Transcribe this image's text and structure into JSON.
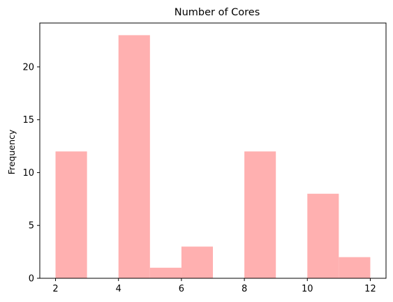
{
  "chart_data": {
    "type": "bar",
    "title": "Number of Cores",
    "xlabel": "",
    "ylabel": "Frequency",
    "bins": [
      {
        "x0": 2,
        "x1": 3,
        "value": 12
      },
      {
        "x0": 3,
        "x1": 4,
        "value": 0
      },
      {
        "x0": 4,
        "x1": 5,
        "value": 23
      },
      {
        "x0": 5,
        "x1": 6,
        "value": 1
      },
      {
        "x0": 6,
        "x1": 7,
        "value": 3
      },
      {
        "x0": 7,
        "x1": 8,
        "value": 0
      },
      {
        "x0": 8,
        "x1": 9,
        "value": 12
      },
      {
        "x0": 9,
        "x1": 10,
        "value": 0
      },
      {
        "x0": 10,
        "x1": 11,
        "value": 8
      },
      {
        "x0": 11,
        "x1": 12,
        "value": 2
      }
    ],
    "xlim": [
      1.5,
      12.5
    ],
    "ylim": [
      0,
      24.15
    ],
    "xticks": [
      2,
      4,
      6,
      8,
      10,
      12
    ],
    "yticks": [
      0,
      5,
      10,
      15,
      20
    ],
    "grid": false,
    "bar_color": "#FFB0B0",
    "axis_color": "#000000"
  }
}
